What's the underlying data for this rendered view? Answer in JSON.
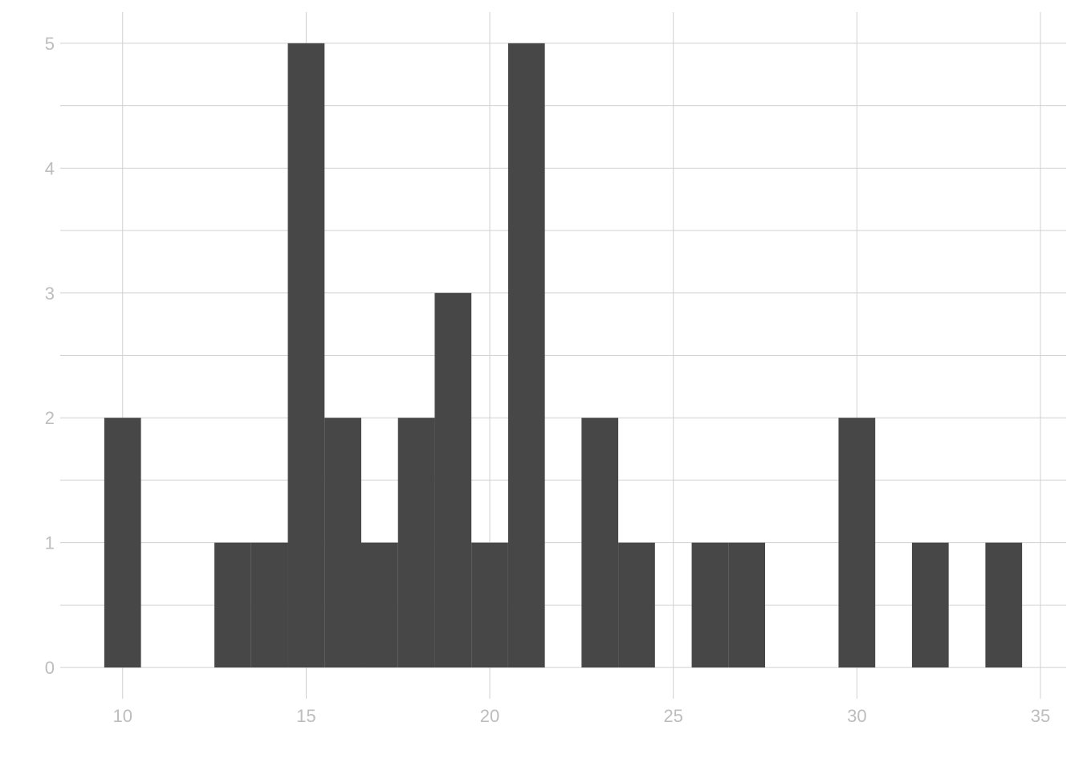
{
  "chart_data": {
    "type": "bar",
    "title": "",
    "xlabel": "",
    "ylabel": "",
    "bin_width": 1,
    "bins": [
      {
        "x": 10,
        "count": 2
      },
      {
        "x": 13,
        "count": 1
      },
      {
        "x": 14,
        "count": 1
      },
      {
        "x": 15,
        "count": 5
      },
      {
        "x": 16,
        "count": 2
      },
      {
        "x": 17,
        "count": 1
      },
      {
        "x": 18,
        "count": 2
      },
      {
        "x": 19,
        "count": 3
      },
      {
        "x": 20,
        "count": 1
      },
      {
        "x": 21,
        "count": 5
      },
      {
        "x": 23,
        "count": 2
      },
      {
        "x": 24,
        "count": 1
      },
      {
        "x": 26,
        "count": 1
      },
      {
        "x": 27,
        "count": 1
      },
      {
        "x": 30,
        "count": 2
      },
      {
        "x": 32,
        "count": 1
      },
      {
        "x": 34,
        "count": 1
      }
    ],
    "xlim": [
      8.3,
      35.7
    ],
    "ylim": [
      -0.25,
      5.25
    ],
    "x_ticks": [
      10,
      15,
      20,
      25,
      30,
      35
    ],
    "y_ticks": [
      0,
      1,
      2,
      3,
      4,
      5
    ],
    "x_tick_labels": [
      "10",
      "15",
      "20",
      "25",
      "30",
      "35"
    ],
    "y_tick_labels": [
      "0",
      "1",
      "2",
      "3",
      "4",
      "5"
    ],
    "grid": true,
    "colors": {
      "bar": "#474747",
      "grid": "#d0d0d0",
      "tick_text": "#bdbdbd",
      "background": "#ffffff"
    }
  }
}
